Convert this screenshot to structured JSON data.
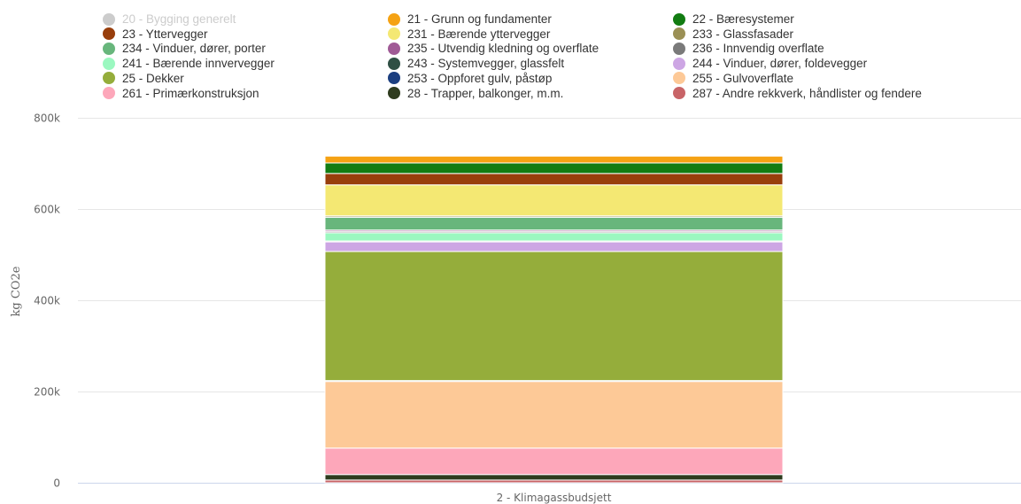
{
  "chart_data": {
    "type": "bar",
    "stacked": true,
    "title": "",
    "xlabel": "",
    "ylabel": "kg CO2e",
    "categories": [
      "2 - Klimagassbudsjett"
    ],
    "ylim": [
      0,
      800000
    ],
    "yticks": [
      0,
      200000,
      400000,
      600000,
      800000
    ],
    "ytick_labels": [
      "0",
      "200k",
      "400k",
      "600k",
      "800k"
    ],
    "grid": true,
    "legend_position": "top",
    "series": [
      {
        "name": "20 - Bygging generelt",
        "color": "#cccccc",
        "visible": false,
        "values": [
          0
        ]
      },
      {
        "name": "21 - Grunn og fundamenter",
        "color": "#f5a213",
        "visible": true,
        "values": [
          15000
        ]
      },
      {
        "name": "22 - Bæresystemer",
        "color": "#127c12",
        "visible": true,
        "values": [
          23000
        ]
      },
      {
        "name": "23 - Yttervegger",
        "color": "#983e0c",
        "visible": true,
        "values": [
          25000
        ]
      },
      {
        "name": "231 - Bærende yttervegger",
        "color": "#f4e873",
        "visible": true,
        "values": [
          68000
        ]
      },
      {
        "name": "233 - Glassfasader",
        "color": "#9b9055",
        "visible": true,
        "values": [
          3000
        ]
      },
      {
        "name": "234 - Vinduer, dører, porter",
        "color": "#68b67c",
        "visible": true,
        "values": [
          28000
        ]
      },
      {
        "name": "235 - Utvendig kledning og overflate",
        "color": "#a05a96",
        "visible": true,
        "values": [
          3000
        ]
      },
      {
        "name": "236 - Innvendig overflate",
        "color": "#7a7a7a",
        "visible": true,
        "values": [
          3000
        ]
      },
      {
        "name": "241 - Bærende innvervegger",
        "color": "#9bf8c0",
        "visible": true,
        "values": [
          18000
        ]
      },
      {
        "name": "243 - Systemvegger, glassfelt",
        "color": "#2f4f44",
        "visible": true,
        "values": [
          2000
        ]
      },
      {
        "name": "244 - Vinduer, dører, foldevegger",
        "color": "#cda6e4",
        "visible": true,
        "values": [
          21000
        ]
      },
      {
        "name": "25 - Dekker",
        "color": "#95ad3b",
        "visible": true,
        "values": [
          283000
        ]
      },
      {
        "name": "253 - Oppforet gulv, påstøp",
        "color": "#1c3f80",
        "visible": true,
        "values": [
          2000
        ]
      },
      {
        "name": "255 - Gulvoverflate",
        "color": "#fdc997",
        "visible": true,
        "values": [
          146000
        ]
      },
      {
        "name": "261 - Primærkonstruksjon",
        "color": "#fda7ba",
        "visible": true,
        "values": [
          58000
        ]
      },
      {
        "name": "28 - Trapper, balkonger, m.m.",
        "color": "#2e3b1e",
        "visible": true,
        "values": [
          12000
        ]
      },
      {
        "name": "287 - Andre rekkverk, håndlister og fendere",
        "color": "#c86467",
        "visible": true,
        "values": [
          6000
        ]
      }
    ]
  }
}
